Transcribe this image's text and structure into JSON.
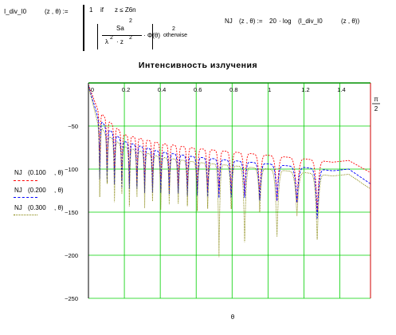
{
  "formulas": {
    "def_lhs_name": "I_div_I0",
    "def_lhs_args": "(z , θ) :=",
    "case1_value": "1",
    "case1_if": "if",
    "case1_cond": "z ≤ Z6n",
    "case2_num": "Sa",
    "case2_den_lambda": "λ",
    "case2_den_z": "· z",
    "exp2": "2",
    "case2_phi": "· Φ(θ)",
    "case2_otherwise": "otherwise",
    "nj_lhs": "NJ",
    "nj_args": "(z , θ) :=",
    "nj_rhs_coef": "20",
    "nj_rhs_log": "· log",
    "nj_rhs_call": "(I_div_I0",
    "nj_rhs_args": "(z , θ))"
  },
  "colors": {
    "s1": "#ff0000",
    "s2": "#0000ff",
    "s3": "#808000",
    "grid": "#00d000",
    "frame": "#009000",
    "marker": "#d00000"
  },
  "chart_data": {
    "type": "line",
    "title": "Интенсивность излучения",
    "xlabel": "θ",
    "ylabel": "",
    "xlim": [
      0,
      1.5708
    ],
    "ylim": [
      -250,
      0
    ],
    "x_ticks": [
      {
        "v": 0,
        "label": "0"
      },
      {
        "v": 0.2,
        "label": "0.2"
      },
      {
        "v": 0.4,
        "label": "0.4"
      },
      {
        "v": 0.6,
        "label": "0.6"
      },
      {
        "v": 0.8,
        "label": "0.8"
      },
      {
        "v": 1.0,
        "label": "1"
      },
      {
        "v": 1.2,
        "label": "1.2"
      },
      {
        "v": 1.4,
        "label": "1.4"
      }
    ],
    "y_ticks": [
      {
        "v": -50,
        "label": "−50"
      },
      {
        "v": -100,
        "label": "−100"
      },
      {
        "v": -150,
        "label": "−150"
      },
      {
        "v": -200,
        "label": "−200"
      },
      {
        "v": -250,
        "label": "−250"
      }
    ],
    "x_marker": {
      "value": 1.5708,
      "label_num": "π",
      "label_den": "2"
    },
    "grid": true,
    "legend_position": "left",
    "legend": [
      {
        "fn": "NJ",
        "arg1": "(0.100",
        "arg2": ", θ)"
      },
      {
        "fn": "NJ",
        "arg1": "(0.200",
        "arg2": ", θ)"
      },
      {
        "fn": "NJ",
        "arg1": "(0.300",
        "arg2": ", θ)"
      }
    ],
    "series": [
      {
        "envelope": [
          [
            0.0,
            -2
          ],
          [
            0.05,
            -30
          ],
          [
            0.1,
            -42
          ],
          [
            0.2,
            -60
          ],
          [
            0.4,
            -70
          ],
          [
            0.6,
            -76
          ],
          [
            0.8,
            -80
          ],
          [
            1.0,
            -84
          ],
          [
            1.2,
            -88
          ],
          [
            1.36,
            -92
          ],
          [
            1.45,
            -90
          ],
          [
            1.57,
            -104
          ]
        ],
        "nulls": [
          0.063,
          0.104,
          0.145,
          0.186,
          0.228,
          0.27,
          0.313,
          0.357,
          0.403,
          0.45,
          0.5,
          0.551,
          0.606,
          0.664,
          0.727,
          0.795,
          0.87,
          0.954,
          1.05,
          1.161,
          1.274
        ],
        "null_depth": [
          -100,
          -108,
          -112,
          -118,
          -120,
          -122,
          -124,
          -124,
          -126,
          -126,
          -126,
          -126,
          -126,
          -128,
          -130,
          -132,
          -134,
          -136,
          -138,
          -140,
          -152
        ]
      },
      {
        "envelope": [
          [
            0.0,
            -3
          ],
          [
            0.05,
            -38
          ],
          [
            0.1,
            -52
          ],
          [
            0.2,
            -68
          ],
          [
            0.4,
            -80
          ],
          [
            0.6,
            -86
          ],
          [
            0.8,
            -90
          ],
          [
            1.0,
            -94
          ],
          [
            1.2,
            -98
          ],
          [
            1.36,
            -102
          ],
          [
            1.45,
            -100
          ],
          [
            1.57,
            -117
          ]
        ],
        "nulls": [
          0.063,
          0.104,
          0.145,
          0.186,
          0.228,
          0.27,
          0.313,
          0.357,
          0.403,
          0.45,
          0.5,
          0.551,
          0.606,
          0.664,
          0.727,
          0.795,
          0.87,
          0.954,
          1.05,
          1.161,
          1.274
        ],
        "null_depth": [
          -115,
          -120,
          -122,
          -126,
          -126,
          -128,
          -128,
          -130,
          -130,
          -130,
          -132,
          -132,
          -132,
          -134,
          -134,
          -136,
          -136,
          -138,
          -138,
          -140,
          -160
        ]
      },
      {
        "envelope": [
          [
            0.0,
            -4
          ],
          [
            0.05,
            -45
          ],
          [
            0.1,
            -60
          ],
          [
            0.2,
            -74
          ],
          [
            0.4,
            -86
          ],
          [
            0.6,
            -92
          ],
          [
            0.8,
            -96
          ],
          [
            1.0,
            -100
          ],
          [
            1.2,
            -104
          ],
          [
            1.36,
            -108
          ],
          [
            1.45,
            -106
          ],
          [
            1.57,
            -123
          ]
        ],
        "nulls": [
          0.063,
          0.104,
          0.145,
          0.186,
          0.228,
          0.27,
          0.313,
          0.357,
          0.403,
          0.45,
          0.5,
          0.551,
          0.606,
          0.664,
          0.727,
          0.795,
          0.87,
          0.954,
          1.05,
          1.161,
          1.274
        ],
        "null_depth": [
          -136,
          -122,
          -143,
          -132,
          -147,
          -138,
          -146,
          -140,
          -150,
          -142,
          -145,
          -144,
          -150,
          -148,
          -203,
          -150,
          -190,
          -152,
          -180,
          -156,
          -186
        ]
      }
    ]
  }
}
